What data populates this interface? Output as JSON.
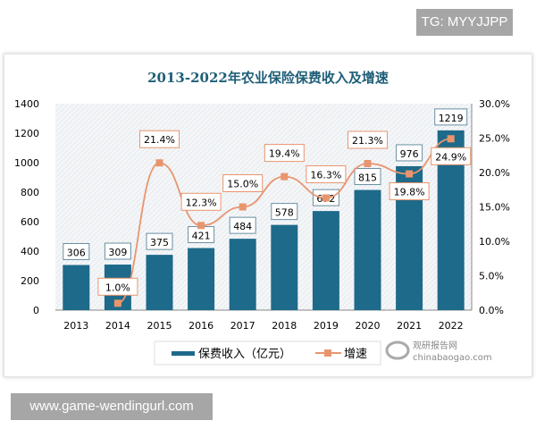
{
  "watermarks": {
    "top_right": "TG: MYYJJPP",
    "bottom_left": "www.game-wendingurl.com",
    "logo_text": "观研报告网 chinabaogao.com"
  },
  "colors": {
    "bar": "#1e6a8a",
    "line": "#e8956e",
    "title": "#1f5f78"
  },
  "chart_data": {
    "type": "bar+line",
    "title": "2013-2022年农业保险保费收入及增速",
    "categories": [
      "2013",
      "2014",
      "2015",
      "2016",
      "2017",
      "2018",
      "2019",
      "2020",
      "2021",
      "2022"
    ],
    "series": [
      {
        "name": "保费收入（亿元）",
        "type": "bar",
        "axis": "left",
        "values": [
          306,
          309,
          375,
          421,
          484,
          578,
          672,
          815,
          976,
          1219
        ],
        "labels": [
          "306",
          "309",
          "375",
          "421",
          "484",
          "578",
          "672",
          "815",
          "976",
          "1219"
        ]
      },
      {
        "name": "增速",
        "type": "line",
        "axis": "right",
        "values": [
          null,
          1.0,
          21.4,
          12.3,
          15.0,
          19.4,
          16.3,
          21.3,
          19.8,
          24.9
        ],
        "labels": [
          "",
          "1.0%",
          "21.4%",
          "12.3%",
          "15.0%",
          "19.4%",
          "16.3%",
          "21.3%",
          "19.8%",
          "24.9%"
        ]
      }
    ],
    "y_left": {
      "range": [
        0,
        1400
      ],
      "ticks": [
        "0",
        "200",
        "400",
        "600",
        "800",
        "1000",
        "1200",
        "1400"
      ]
    },
    "y_right": {
      "range": [
        0,
        30
      ],
      "ticks": [
        "0.0%",
        "5.0%",
        "10.0%",
        "15.0%",
        "20.0%",
        "25.0%",
        "30.0%"
      ]
    },
    "grid": false,
    "legend": "bottom"
  }
}
